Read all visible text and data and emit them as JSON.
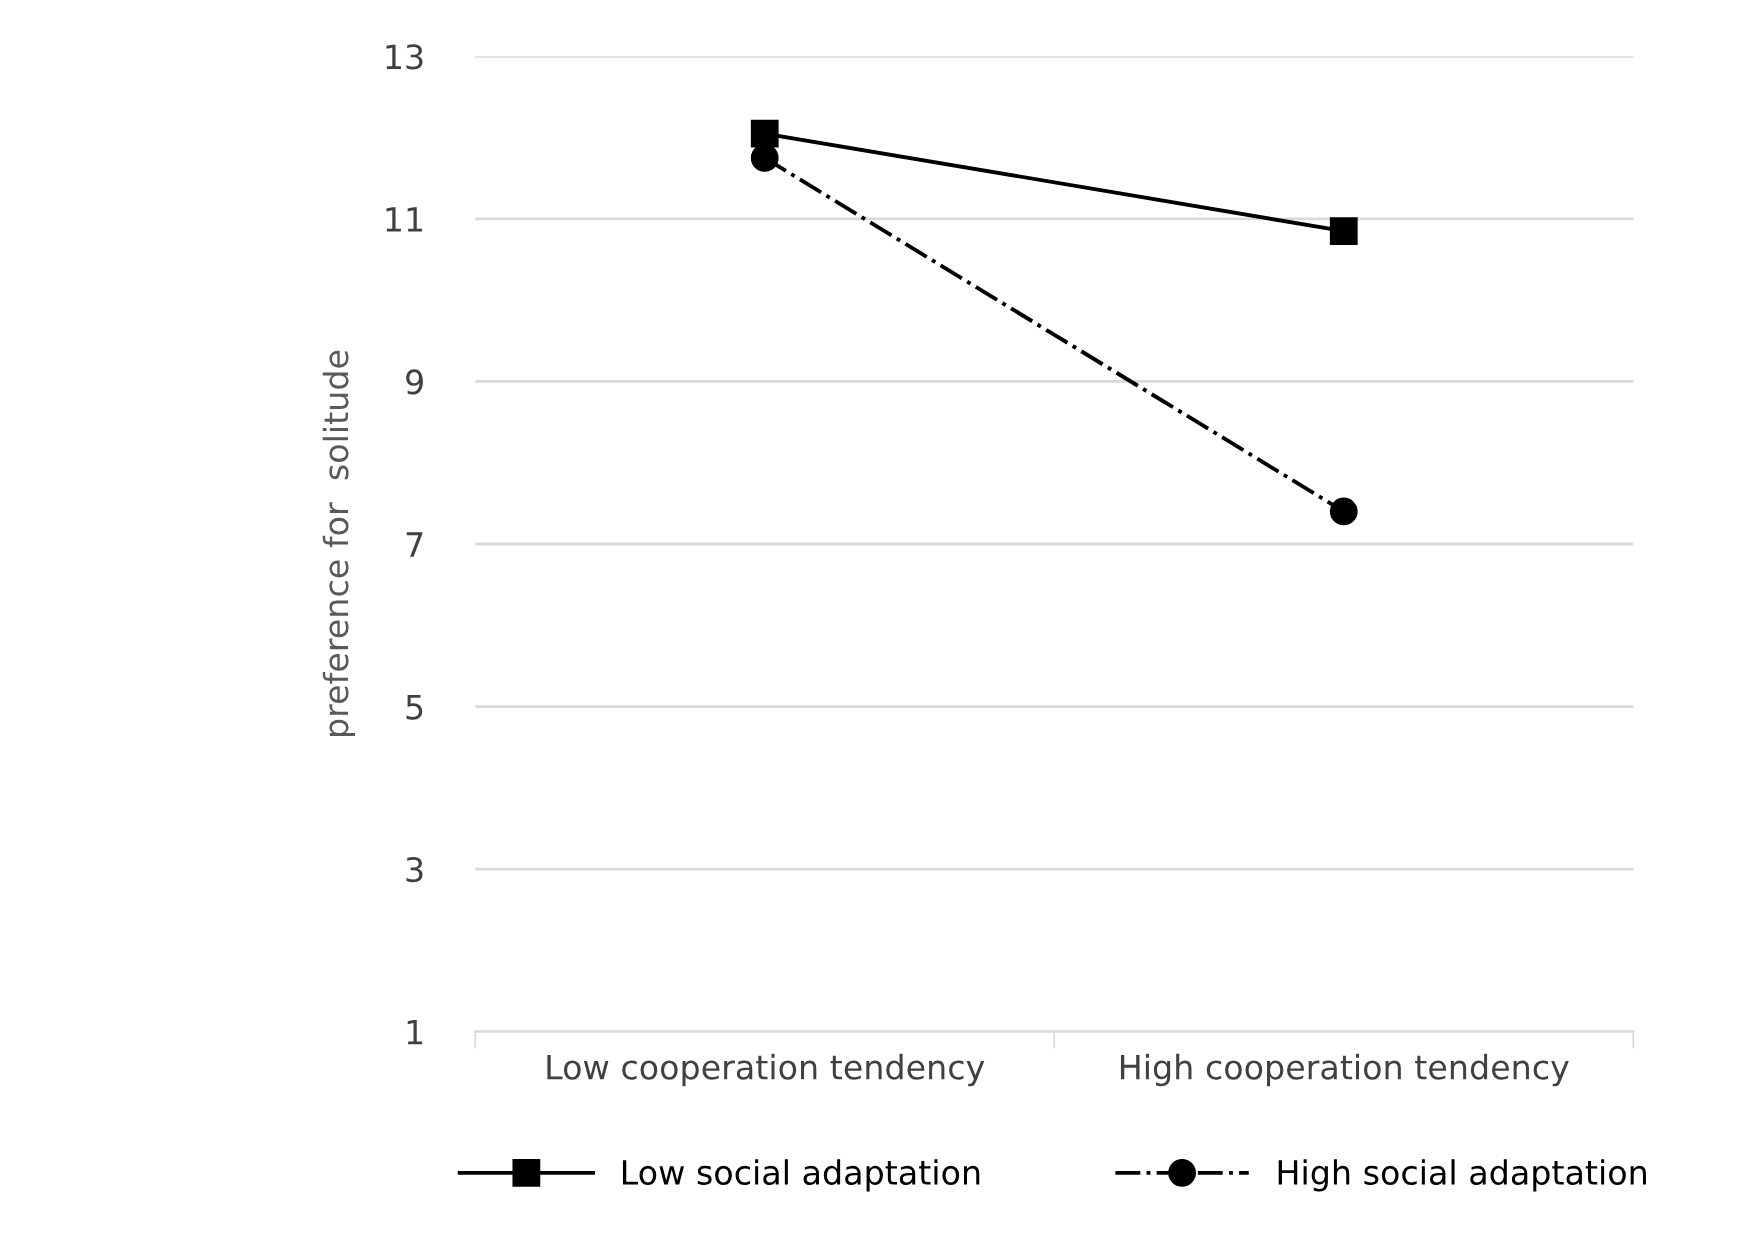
{
  "chart_data": {
    "type": "line",
    "ylabel": "preference for  solitude",
    "categories": [
      "Low cooperation tendency",
      "High cooperation tendency"
    ],
    "series": [
      {
        "name": "Low social adaptation",
        "color": "#000000",
        "values": [
          12.05,
          10.85
        ],
        "marker": "square",
        "line_style": "solid"
      },
      {
        "name": "High social adaptation",
        "color": "#000000",
        "values": [
          11.75,
          7.4
        ],
        "marker": "circle",
        "line_style": "dashdot"
      }
    ],
    "ylim": [
      1,
      13
    ],
    "yticks": [
      1,
      3,
      5,
      7,
      9,
      11,
      13
    ],
    "grid": "y",
    "legend": "bottom"
  }
}
